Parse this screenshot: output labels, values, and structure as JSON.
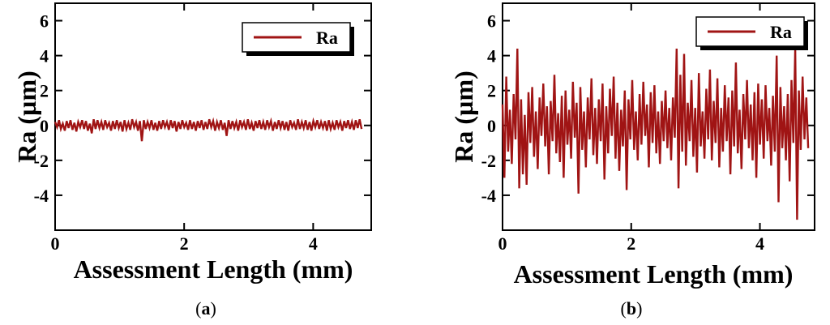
{
  "colors": {
    "series": "#a01414",
    "axis": "#000000",
    "background": "#ffffff"
  },
  "chart_data": [
    {
      "type": "line",
      "panel": "a",
      "caption": {
        "open": "(",
        "letter": "a",
        "close": ")"
      },
      "xlabel": "Assessment Length (mm)",
      "ylabel": "Ra (µm)",
      "xlim": [
        0,
        4.9
      ],
      "ylim": [
        -6,
        7
      ],
      "xticks": [
        0,
        2,
        4
      ],
      "xtick_labels": [
        "0",
        "2",
        "4"
      ],
      "yticks": [
        6,
        4,
        2,
        0,
        -2,
        -4
      ],
      "ytick_labels": [
        "6",
        "4",
        "2",
        "0",
        "-2",
        "-4"
      ],
      "legend": {
        "position": "top-right",
        "entries": [
          "Ra"
        ]
      },
      "series": [
        {
          "name": "Ra",
          "x_start": 0,
          "x_end": 4.75,
          "values": [
            0.2,
            -0.1,
            0.3,
            -0.2,
            0.1,
            -0.3,
            0.25,
            -0.15,
            0.3,
            -0.25,
            0.15,
            -0.35,
            0.2,
            -0.1,
            0.3,
            -0.2,
            0.25,
            -0.3,
            0.1,
            -0.45,
            0.35,
            -0.2,
            0.3,
            -0.15,
            0.2,
            -0.25,
            0.3,
            -0.1,
            0.15,
            -0.3,
            0.25,
            -0.2,
            0.3,
            -0.15,
            0.2,
            -0.35,
            0.3,
            -0.2,
            0.15,
            -0.25,
            0.35,
            -0.1,
            0.2,
            -0.3,
            0.25,
            -0.9,
            0.3,
            -0.2,
            0.2,
            -0.15,
            0.3,
            -0.25,
            0.15,
            -0.3,
            0.25,
            -0.2,
            0.3,
            -0.1,
            0.2,
            -0.25,
            0.3,
            -0.15,
            0.25,
            -0.35,
            0.2,
            -0.2,
            0.3,
            -0.1,
            0.15,
            -0.25,
            0.3,
            -0.2,
            0.2,
            -0.3,
            0.25,
            -0.15,
            0.3,
            -0.25,
            0.2,
            -0.2,
            0.35,
            -0.1,
            0.25,
            -0.3,
            0.2,
            -0.15,
            0.3,
            -0.25,
            0.15,
            -0.6,
            0.3,
            -0.2,
            0.25,
            -0.15,
            0.2,
            -0.3,
            0.3,
            -0.1,
            0.2,
            -0.25,
            0.35,
            -0.2,
            0.15,
            -0.3,
            0.25,
            -0.15,
            0.3,
            -0.2,
            0.2,
            -0.25,
            0.3,
            -0.1,
            0.25,
            -0.3,
            0.2,
            -0.2,
            0.3,
            -0.15,
            0.25,
            -0.25,
            0.2,
            -0.3,
            0.3,
            -0.1,
            0.15,
            -0.25,
            0.35,
            -0.2,
            0.2,
            -0.15,
            0.3,
            -0.25,
            0.2,
            -0.3,
            0.25,
            -0.1,
            0.3,
            -0.2,
            0.2,
            -0.15,
            0.25,
            -0.3,
            0.3,
            -0.2,
            0.15,
            -0.25,
            0.3,
            -0.1,
            0.2,
            -0.3,
            0.25,
            -0.15,
            0.3,
            -0.2,
            0.2,
            -0.25,
            0.3,
            -0.15,
            0.35,
            -0.2
          ]
        }
      ]
    },
    {
      "type": "line",
      "panel": "b",
      "caption": {
        "open": "(",
        "letter": "b",
        "close": ")"
      },
      "xlabel": "Assessment Length (mm)",
      "ylabel": "Ra (µm)",
      "xlim": [
        0,
        4.85
      ],
      "ylim": [
        -6,
        7
      ],
      "xticks": [
        0,
        2,
        4
      ],
      "xtick_labels": [
        "0",
        "2",
        "4"
      ],
      "yticks": [
        6,
        4,
        2,
        0,
        -2,
        -4
      ],
      "ytick_labels": [
        "6",
        "4",
        "2",
        "0",
        "-2",
        "-4"
      ],
      "legend": {
        "position": "top-right",
        "entries": [
          "Ra"
        ]
      },
      "series": [
        {
          "name": "Ra",
          "x_start": 0,
          "x_end": 4.75,
          "values": [
            1.2,
            -3.0,
            2.8,
            -1.5,
            0.9,
            -2.2,
            1.8,
            -0.8,
            4.4,
            -3.6,
            1.5,
            -2.8,
            0.6,
            -3.4,
            1.9,
            -1.0,
            2.2,
            -1.8,
            0.8,
            -2.5,
            1.6,
            -0.6,
            2.4,
            -1.2,
            1.1,
            -2.8,
            1.4,
            -0.9,
            2.9,
            -1.6,
            0.7,
            -2.1,
            1.7,
            -3.0,
            2.0,
            -1.1,
            0.9,
            -1.9,
            2.5,
            -0.7,
            1.3,
            -3.9,
            2.2,
            -1.4,
            0.8,
            -2.4,
            1.6,
            -0.8,
            2.7,
            -1.7,
            1.0,
            -2.2,
            1.5,
            -0.9,
            2.4,
            -3.1,
            1.1,
            -1.6,
            2.1,
            -0.6,
            2.8,
            -1.9,
            1.3,
            -2.6,
            0.9,
            -1.2,
            2.0,
            -3.7,
            1.5,
            -0.8,
            2.6,
            -1.4,
            0.8,
            -2.0,
            1.8,
            -1.1,
            2.5,
            -0.6,
            1.2,
            -2.4,
            1.9,
            -1.0,
            2.3,
            -1.6,
            0.8,
            -2.2,
            1.4,
            -0.9,
            2.0,
            -1.3,
            1.0,
            -2.0,
            1.6,
            -0.7,
            4.4,
            -3.6,
            2.9,
            -1.5,
            4.1,
            -2.3,
            1.3,
            -0.9,
            2.6,
            -1.8,
            1.0,
            -2.7,
            3.0,
            -1.2,
            0.8,
            -1.9,
            2.1,
            -0.8,
            3.2,
            -2.0,
            1.4,
            -1.0,
            2.7,
            -2.4,
            1.0,
            -1.5,
            2.3,
            -0.9,
            1.6,
            -2.8,
            2.0,
            -1.2,
            3.6,
            -1.6,
            0.9,
            -2.5,
            1.8,
            -0.8,
            2.6,
            -1.3,
            1.2,
            -2.0,
            1.9,
            -3.0,
            2.4,
            -1.1,
            1.5,
            -1.9,
            2.3,
            -0.9,
            1.0,
            -2.3,
            1.7,
            -1.5,
            4.0,
            -4.4,
            2.2,
            -1.3,
            1.1,
            -2.0,
            1.8,
            -3.2,
            2.6,
            -1.0,
            4.4,
            -5.4,
            2.0,
            -1.4,
            2.8,
            -0.8,
            1.6,
            -1.3
          ]
        }
      ]
    }
  ]
}
